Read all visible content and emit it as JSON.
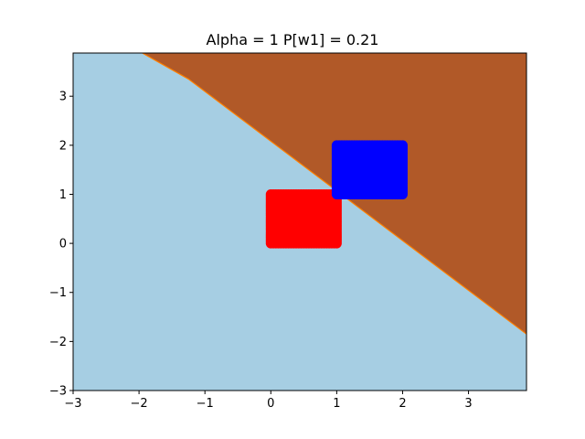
{
  "chart_data": {
    "type": "scatter",
    "title": "Alpha = 1 P[w1] = 0.21",
    "xlabel": "",
    "ylabel": "",
    "xlim": [
      -3,
      3.88
    ],
    "ylim": [
      -3,
      3.88
    ],
    "x_ticks": [
      -3,
      -2,
      -1,
      0,
      1,
      2,
      3
    ],
    "x_tick_labels": [
      "−3",
      "−2",
      "−1",
      "0",
      "1",
      "2",
      "3"
    ],
    "y_ticks": [
      -3,
      -2,
      -1,
      0,
      1,
      2,
      3
    ],
    "y_tick_labels": [
      "−3",
      "−2",
      "−1",
      "0",
      "1",
      "2",
      "3"
    ],
    "grid": false,
    "decision_regions": {
      "boundary": [
        [
          -1.95,
          3.88
        ],
        [
          -1.25,
          3.35
        ],
        [
          3.88,
          -1.85
        ]
      ],
      "lower_region_color": "#a6cee3",
      "upper_region_color": "#b15928",
      "boundary_color": "#ff7f00"
    },
    "series": [
      {
        "color": "#ff0000",
        "x_range": [
          0,
          1
        ],
        "y_range": [
          0,
          1
        ]
      },
      {
        "color": "#0000ff",
        "x_range": [
          1,
          2
        ],
        "y_range": [
          1,
          2
        ]
      }
    ]
  }
}
